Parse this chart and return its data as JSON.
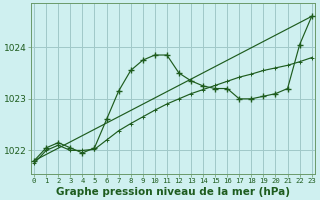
{
  "background_color": "#cff0f0",
  "plot_bg_color": "#cff0f0",
  "grid_color": "#a0c8c8",
  "line_color": "#1e5c1e",
  "xlabel": "Graphe pression niveau de la mer (hPa)",
  "xlabel_fontsize": 7.5,
  "ytick_fontsize": 6.5,
  "xtick_fontsize": 5.2,
  "yticks": [
    1022,
    1023,
    1024
  ],
  "xticks": [
    0,
    1,
    2,
    3,
    4,
    5,
    6,
    7,
    8,
    9,
    10,
    11,
    12,
    13,
    14,
    15,
    16,
    17,
    18,
    19,
    20,
    21,
    22,
    23
  ],
  "xlim": [
    -0.3,
    23.3
  ],
  "ylim": [
    1021.55,
    1024.85
  ],
  "series1_smooth": {
    "x": [
      0,
      1,
      2,
      3,
      4,
      5,
      6,
      7,
      8,
      9,
      10,
      11,
      12,
      13,
      14,
      15,
      16,
      17,
      18,
      19,
      20,
      21,
      22,
      23
    ],
    "y": [
      1021.75,
      1022.0,
      1022.1,
      1022.0,
      1022.0,
      1022.02,
      1022.2,
      1022.38,
      1022.52,
      1022.65,
      1022.78,
      1022.9,
      1023.0,
      1023.1,
      1023.18,
      1023.26,
      1023.34,
      1023.42,
      1023.48,
      1023.55,
      1023.6,
      1023.65,
      1023.72,
      1023.8
    ]
  },
  "series2_jagged": {
    "x": [
      0,
      1,
      2,
      3,
      4,
      5,
      6,
      7,
      8,
      9,
      10,
      11,
      12,
      13,
      14,
      15,
      16,
      17,
      18,
      19,
      20,
      21,
      22,
      23
    ],
    "y": [
      1021.8,
      1022.05,
      1022.15,
      1022.05,
      1021.95,
      1022.05,
      1022.6,
      1023.15,
      1023.55,
      1023.75,
      1023.85,
      1023.85,
      1023.5,
      1023.35,
      1023.25,
      1023.2,
      1023.2,
      1023.0,
      1023.0,
      1023.05,
      1023.1,
      1023.2,
      1024.05,
      1024.6
    ]
  },
  "series3_line": {
    "x": [
      0,
      23
    ],
    "y": [
      1021.8,
      1024.6
    ]
  }
}
